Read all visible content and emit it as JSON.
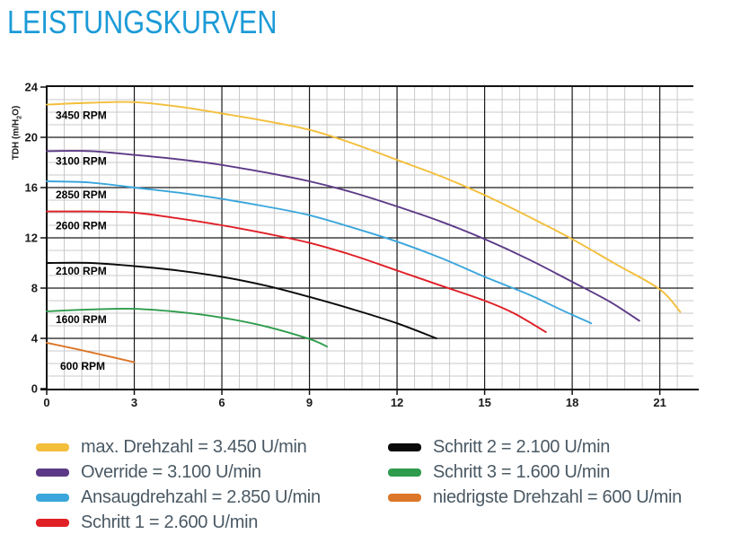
{
  "title": "LEISTUNGSKURVEN",
  "colors": {
    "title": "#1C9BD7",
    "legend_text": "#4A5964",
    "grid_minor": "#C9C9C9",
    "grid_major": "#1a1a1a",
    "axis": "#111111",
    "tick_label": "#1a1a1a",
    "curve_label": "#000000"
  },
  "chart_data": {
    "type": "line",
    "title": "",
    "xlabel": "",
    "ylabel": "TDH (m/H2O)",
    "ylabel_pre": "TDH (m/H",
    "ylabel_sub": "2",
    "ylabel_post": "O)",
    "xlim": [
      0,
      22.15
    ],
    "ylim": [
      0,
      24
    ],
    "x_major_ticks": [
      0,
      3,
      6,
      9,
      12,
      15,
      18,
      21
    ],
    "y_major_ticks": [
      0,
      4,
      8,
      12,
      16,
      20,
      24
    ],
    "x_minor_step": 0.6,
    "y_minor_step": 1,
    "grid": true,
    "legend_position": "bottom",
    "series": [
      {
        "name": "max. Drehzahl = 3.450 U/min",
        "curve_label": "3450 RPM",
        "rpm": 3450,
        "color": "#F3BE3B",
        "points": [
          [
            0,
            22.6
          ],
          [
            1.5,
            22.75
          ],
          [
            3,
            22.8
          ],
          [
            4.5,
            22.45
          ],
          [
            6,
            21.9
          ],
          [
            7.5,
            21.3
          ],
          [
            9,
            20.6
          ],
          [
            10.5,
            19.5
          ],
          [
            12,
            18.2
          ],
          [
            13.5,
            16.9
          ],
          [
            15,
            15.4
          ],
          [
            16.5,
            13.7
          ],
          [
            18,
            11.9
          ],
          [
            19.5,
            9.9
          ],
          [
            21,
            7.9
          ],
          [
            21.7,
            6.1
          ]
        ]
      },
      {
        "name": "Override = 3.100 U/min",
        "curve_label": "3100 RPM",
        "rpm": 3100,
        "color": "#5C3A87",
        "points": [
          [
            0,
            18.9
          ],
          [
            1.5,
            18.9
          ],
          [
            3,
            18.6
          ],
          [
            4.5,
            18.25
          ],
          [
            6,
            17.8
          ],
          [
            7.5,
            17.2
          ],
          [
            9,
            16.5
          ],
          [
            10.5,
            15.6
          ],
          [
            12,
            14.5
          ],
          [
            13.5,
            13.3
          ],
          [
            15,
            11.9
          ],
          [
            16.5,
            10.3
          ],
          [
            18,
            8.5
          ],
          [
            19.3,
            6.9
          ],
          [
            20.3,
            5.4
          ]
        ]
      },
      {
        "name": "Ansaugdrehzahl = 2.850 U/min",
        "curve_label": "2850 RPM",
        "rpm": 2850,
        "color": "#3BA6DB",
        "points": [
          [
            0,
            16.5
          ],
          [
            1.5,
            16.4
          ],
          [
            3,
            16.0
          ],
          [
            4.5,
            15.6
          ],
          [
            6,
            15.1
          ],
          [
            7.5,
            14.5
          ],
          [
            9,
            13.8
          ],
          [
            10.5,
            12.8
          ],
          [
            12,
            11.7
          ],
          [
            13.5,
            10.4
          ],
          [
            15,
            8.9
          ],
          [
            16.5,
            7.5
          ],
          [
            17.6,
            6.3
          ],
          [
            18.65,
            5.2
          ]
        ]
      },
      {
        "name": "Schritt 1 = 2.600 U/min",
        "curve_label": "2600 RPM",
        "rpm": 2600,
        "color": "#E01F26",
        "points": [
          [
            0,
            14.1
          ],
          [
            1.5,
            14.1
          ],
          [
            3,
            14.0
          ],
          [
            4.5,
            13.55
          ],
          [
            6,
            13.0
          ],
          [
            7.5,
            12.35
          ],
          [
            9,
            11.6
          ],
          [
            10.5,
            10.6
          ],
          [
            12,
            9.4
          ],
          [
            13.5,
            8.2
          ],
          [
            15,
            7.0
          ],
          [
            16,
            6.0
          ],
          [
            17.1,
            4.5
          ]
        ]
      },
      {
        "name": "Schritt 2 = 2.100 U/min",
        "curve_label": "2100 RPM",
        "rpm": 2100,
        "color": "#0A0A0A",
        "points": [
          [
            0,
            10.0
          ],
          [
            1.5,
            10.0
          ],
          [
            3,
            9.75
          ],
          [
            4.5,
            9.4
          ],
          [
            6,
            8.9
          ],
          [
            7.5,
            8.2
          ],
          [
            9,
            7.3
          ],
          [
            10.5,
            6.3
          ],
          [
            12,
            5.2
          ],
          [
            13.35,
            4.0
          ]
        ]
      },
      {
        "name": "Schritt 3 = 1.600 U/min",
        "curve_label": "1600 RPM",
        "rpm": 1600,
        "color": "#2E9C4C",
        "points": [
          [
            0,
            6.15
          ],
          [
            1.5,
            6.3
          ],
          [
            3,
            6.35
          ],
          [
            4.5,
            6.1
          ],
          [
            6,
            5.65
          ],
          [
            7.5,
            4.95
          ],
          [
            9,
            3.95
          ],
          [
            9.6,
            3.35
          ]
        ]
      },
      {
        "name": "niedrigste Drehzahl = 600 U/min",
        "curve_label": "600 RPM",
        "rpm": 600,
        "color": "#DC7628",
        "points": [
          [
            0,
            3.65
          ],
          [
            1.5,
            2.9
          ],
          [
            3.0,
            2.1
          ]
        ]
      }
    ]
  },
  "legend": {
    "column1_series_indexes": [
      0,
      1,
      2,
      3
    ],
    "column2_series_indexes": [
      4,
      5,
      6
    ]
  }
}
